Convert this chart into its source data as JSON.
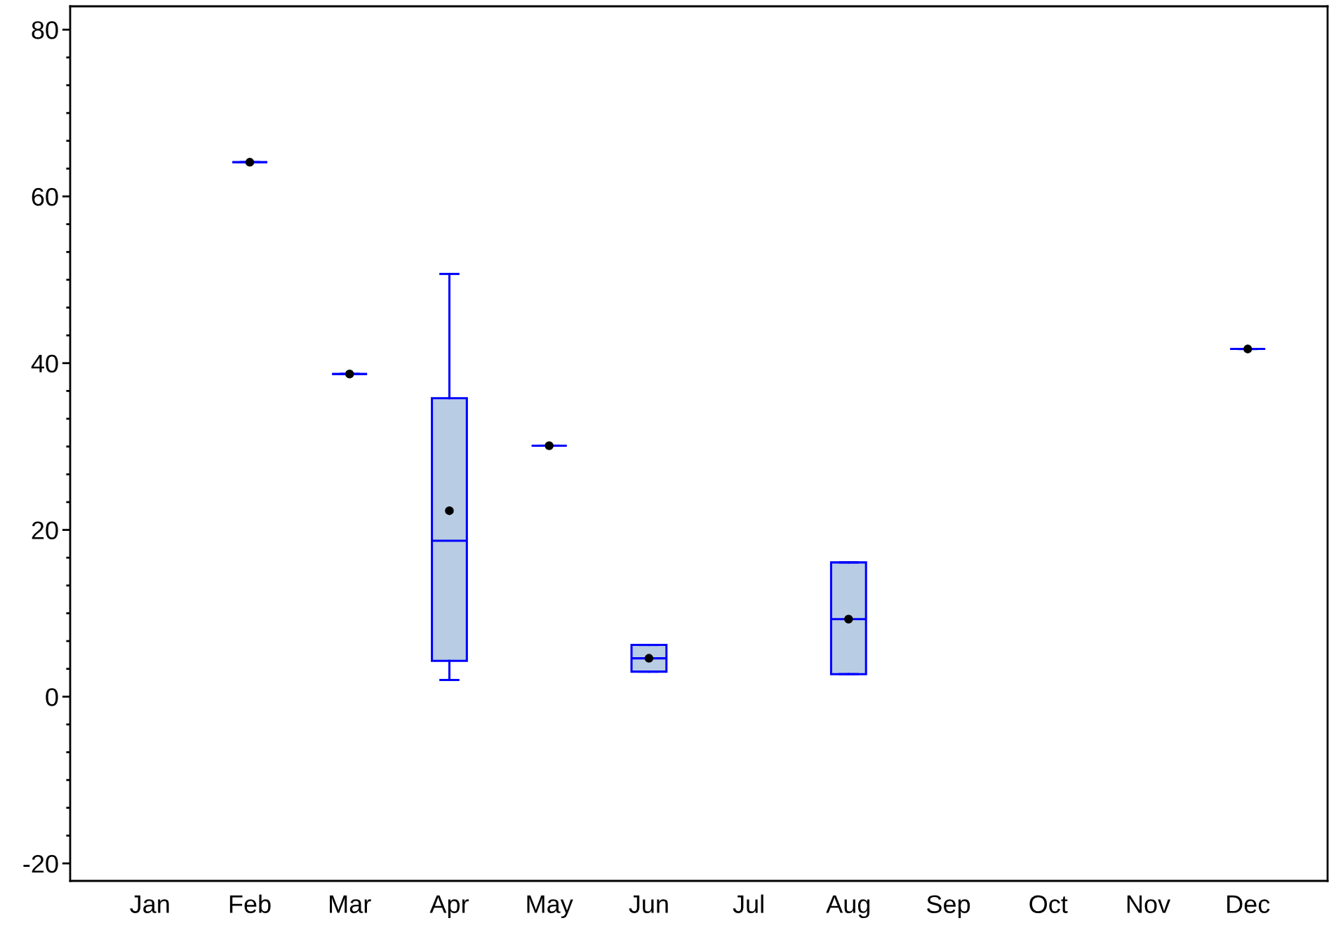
{
  "chart_data": {
    "type": "box",
    "categories": [
      "Jan",
      "Feb",
      "Mar",
      "Apr",
      "May",
      "Jun",
      "Jul",
      "Aug",
      "Sep",
      "Oct",
      "Nov",
      "Dec"
    ],
    "series": [
      {
        "color": "#0000ff",
        "boxes": [
          null,
          {
            "low": 64.1,
            "q1": 64.1,
            "median": 64.1,
            "q3": 64.1,
            "high": 64.1,
            "mean": 64.1
          },
          {
            "low": 38.7,
            "q1": 38.7,
            "median": 38.7,
            "q3": 38.7,
            "high": 38.7,
            "mean": 38.7
          },
          {
            "low": 2.0,
            "q1": 4.3,
            "median": 18.7,
            "q3": 35.8,
            "high": 50.7,
            "mean": 22.3
          },
          {
            "low": 30.1,
            "q1": 30.1,
            "median": 30.1,
            "q3": 30.1,
            "high": 30.1,
            "mean": 30.1
          },
          {
            "low": 3.0,
            "q1": 3.0,
            "median": 4.6,
            "q3": 6.2,
            "high": 6.2,
            "mean": 4.6
          },
          null,
          {
            "low": 2.7,
            "q1": 2.7,
            "median": 9.3,
            "q3": 16.1,
            "high": 16.1,
            "mean": 9.3
          },
          null,
          null,
          null,
          {
            "low": 41.7,
            "q1": 41.7,
            "median": 41.7,
            "q3": 41.7,
            "high": 41.7,
            "mean": 41.7
          }
        ]
      }
    ],
    "ylim": [
      -22.1,
      82.8
    ],
    "yticks": [
      {
        "value": -20,
        "label": "-20"
      },
      0,
      20,
      40,
      60,
      80
    ],
    "grid": false
  }
}
